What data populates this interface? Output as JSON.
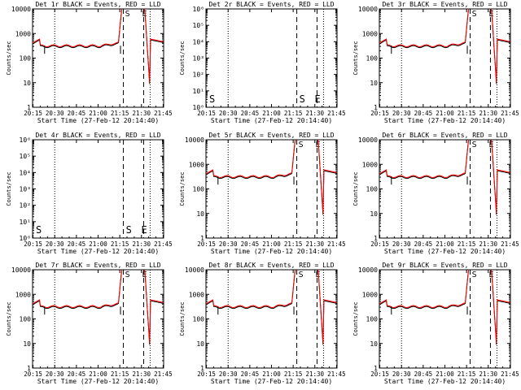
{
  "chart_data": [
    {
      "type": "line",
      "title": "Det 1r BLACK = Events, RED = LLD",
      "xlabel": "Start Time (27-Feb-12 20:14:40)",
      "ylabel": "Counts/sec",
      "yscale": "log",
      "yticks": [
        "1",
        "10",
        "100",
        "1000",
        "10000"
      ],
      "xticks": [
        "20:15",
        "20:30",
        "20:45",
        "21:00",
        "21:15",
        "21:30",
        "21:45"
      ],
      "markers": [
        "S",
        "E"
      ],
      "flat": false,
      "baseline": 300,
      "peak": 10000
    },
    {
      "type": "line",
      "title": "Det 2r BLACK = Events, RED = LLD",
      "xlabel": "Start Time (27-Feb-12 20:14:40)",
      "ylabel": "Counts/sec",
      "yscale": "log",
      "yticks": [
        "10⁰",
        "10¹",
        "10²",
        "10³",
        "10⁴",
        "10⁵",
        "10⁶"
      ],
      "xticks": [
        "20:15",
        "20:30",
        "20:45",
        "21:00",
        "21:15",
        "21:30",
        "21:45"
      ],
      "markers": [
        "S",
        "E"
      ],
      "flat": true
    },
    {
      "type": "line",
      "title": "Det 3r BLACK = Events, RED = LLD",
      "xlabel": "Start Time (27-Feb-12 20:14:40)",
      "ylabel": "Counts/sec",
      "yscale": "log",
      "yticks": [
        "1",
        "10",
        "100",
        "1000",
        "10000"
      ],
      "xticks": [
        "20:15",
        "20:30",
        "20:45",
        "21:00",
        "21:15",
        "21:30",
        "21:45"
      ],
      "markers": [
        "S",
        "E"
      ],
      "flat": false,
      "baseline": 300,
      "peak": 10000
    },
    {
      "type": "line",
      "title": "Det 4r BLACK = Events, RED = LLD",
      "xlabel": "Start Time (27-Feb-12 20:14:40)",
      "ylabel": "Counts/sec",
      "yscale": "log",
      "yticks": [
        "10⁰",
        "10¹",
        "10²",
        "10³",
        "10⁴",
        "10⁵",
        "10⁶"
      ],
      "xticks": [
        "20:15",
        "20:30",
        "20:45",
        "21:00",
        "21:15",
        "21:30",
        "21:45"
      ],
      "markers": [
        "S",
        "E"
      ],
      "flat": true
    },
    {
      "type": "line",
      "title": "Det 5r BLACK = Events, RED = LLD",
      "xlabel": "Start Time (27-Feb-12 20:14:40)",
      "ylabel": "Counts/sec",
      "yscale": "log",
      "yticks": [
        "1",
        "10",
        "100",
        "1000",
        "10000"
      ],
      "xticks": [
        "20:15",
        "20:30",
        "20:45",
        "21:00",
        "21:15",
        "21:30",
        "21:45"
      ],
      "markers": [
        "S",
        "E"
      ],
      "flat": false,
      "baseline": 300,
      "peak": 10000
    },
    {
      "type": "line",
      "title": "Det 6r BLACK = Events, RED = LLD",
      "xlabel": "Start Time (27-Feb-12 20:14:40)",
      "ylabel": "Counts/sec",
      "yscale": "log",
      "yticks": [
        "1",
        "10",
        "100",
        "1000",
        "10000"
      ],
      "xticks": [
        "20:15",
        "20:30",
        "20:45",
        "21:00",
        "21:15",
        "21:30",
        "21:45"
      ],
      "markers": [
        "S",
        "E"
      ],
      "flat": false,
      "baseline": 300,
      "peak": 10000
    },
    {
      "type": "line",
      "title": "Det 7r BLACK = Events, RED = LLD",
      "xlabel": "Start Time (27-Feb-12 20:14:40)",
      "ylabel": "Counts/sec",
      "yscale": "log",
      "yticks": [
        "1",
        "10",
        "100",
        "1000",
        "10000"
      ],
      "xticks": [
        "20:15",
        "20:30",
        "20:45",
        "21:00",
        "21:15",
        "21:30",
        "21:45"
      ],
      "markers": [
        "S",
        "E"
      ],
      "flat": false,
      "baseline": 300,
      "peak": 10000
    },
    {
      "type": "line",
      "title": "Det 8r BLACK = Events, RED = LLD",
      "xlabel": "Start Time (27-Feb-12 20:14:40)",
      "ylabel": "Counts/sec",
      "yscale": "log",
      "yticks": [
        "1",
        "10",
        "100",
        "1000",
        "10000"
      ],
      "xticks": [
        "20:15",
        "20:30",
        "20:45",
        "21:00",
        "21:15",
        "21:30",
        "21:45"
      ],
      "markers": [
        "S",
        "E"
      ],
      "flat": false,
      "baseline": 300,
      "peak": 10000
    },
    {
      "type": "line",
      "title": "Det 9r BLACK = Events, RED = LLD",
      "xlabel": "Start Time (27-Feb-12 20:14:40)",
      "ylabel": "Counts/sec",
      "yscale": "log",
      "yticks": [
        "1",
        "10",
        "100",
        "1000",
        "10000"
      ],
      "xticks": [
        "20:15",
        "20:30",
        "20:45",
        "21:00",
        "21:15",
        "21:30",
        "21:45"
      ],
      "markers": [
        "S",
        "E"
      ],
      "flat": false,
      "baseline": 300,
      "peak": 10000
    }
  ],
  "colors": {
    "events": "#000000",
    "lld": "#ff0000",
    "axis": "#000000",
    "background": "#ffffff"
  }
}
